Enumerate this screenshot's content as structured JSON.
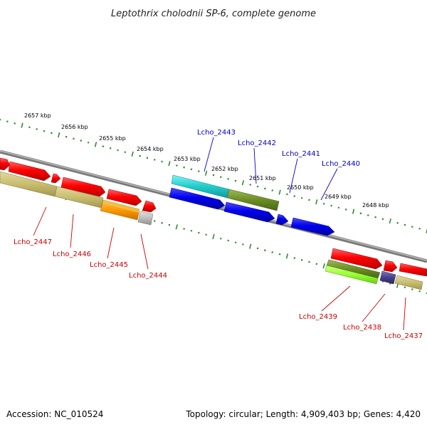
{
  "title": "Leptothrix cholodnii SP-6, complete genome",
  "footer": {
    "accession": "Accession: NC_010524",
    "summary": "Topology: circular; Length: 4,909,403 bp; Genes: 4,420"
  },
  "colors": {
    "backbone": "#888888",
    "tick": "#2e8b2e",
    "label_blue": "#0000cc",
    "label_red": "#cc0000"
  },
  "kbp_labels": [
    {
      "text": "2657 kbp",
      "pos": 2657
    },
    {
      "text": "2656 kbp",
      "pos": 2656
    },
    {
      "text": "2655 kbp",
      "pos": 2655
    },
    {
      "text": "2654 kbp",
      "pos": 2654
    },
    {
      "text": "2653 kbp",
      "pos": 2653
    },
    {
      "text": "2652 kbp",
      "pos": 2652
    },
    {
      "text": "2651 kbp",
      "pos": 2651
    },
    {
      "text": "2650 kbp",
      "pos": 2650
    },
    {
      "text": "2649 kbp",
      "pos": 2649
    },
    {
      "text": "2648 kbp",
      "pos": 2648
    }
  ],
  "gene_labels": [
    {
      "text": "Lcho_2443",
      "color": "blue"
    },
    {
      "text": "Lcho_2442",
      "color": "blue"
    },
    {
      "text": "Lcho_2441",
      "color": "blue"
    },
    {
      "text": "Lcho_2440",
      "color": "blue"
    },
    {
      "text": "Lcho_2447",
      "color": "red"
    },
    {
      "text": "Lcho_2446",
      "color": "red"
    },
    {
      "text": "Lcho_2445",
      "color": "red"
    },
    {
      "text": "Lcho_2444",
      "color": "red"
    },
    {
      "text": "Lcho_2439",
      "color": "red"
    },
    {
      "text": "Lcho_2438",
      "color": "red"
    },
    {
      "text": "Lcho_2437",
      "color": "red"
    }
  ]
}
